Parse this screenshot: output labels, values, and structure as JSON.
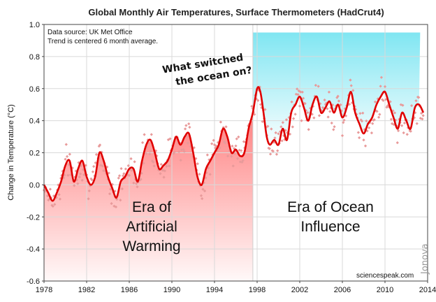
{
  "chart_data": {
    "type": "line",
    "title": "Global Monthly Air Temperatures, Surface Thermometers (HadCrut4)",
    "xlabel": "",
    "ylabel": "Change in Temperature  (°C)",
    "xlim": [
      1978,
      2014
    ],
    "ylim": [
      -0.6,
      1.0
    ],
    "x_ticks": [
      "1978",
      "1982",
      "1986",
      "1990",
      "1994",
      "1998",
      "2002",
      "2006",
      "2010",
      "2014"
    ],
    "y_ticks": [
      "-0.6",
      "-0.4",
      "-0.2",
      "0.0",
      "0.2",
      "0.4",
      "0.6",
      "0.8",
      "1.0"
    ],
    "grid": true,
    "notes": [
      "Data source: UK Met Office",
      "Trend is centered 6 month average."
    ],
    "annotation_lines": [
      "What switched",
      "the ocean on?"
    ],
    "era_left_lines": [
      "Era of",
      "Artificial",
      "Warming"
    ],
    "era_right_lines": [
      "Era of Ocean",
      "Influence"
    ],
    "era_boundary": 1997.6,
    "era_left_color": "#ff8080",
    "era_right_color": "#80e6f2",
    "credit": "sciencespeak.com",
    "signature": "Jonova",
    "line_color": "#e00000",
    "point_color": "#e89a9a",
    "series": [
      {
        "kind": "trend",
        "x": [
          1978.0,
          1978.4,
          1978.8,
          1979.2,
          1979.6,
          1980.0,
          1980.4,
          1980.8,
          1981.2,
          1981.6,
          1982.0,
          1982.4,
          1982.8,
          1983.2,
          1983.6,
          1984.0,
          1984.4,
          1984.8,
          1985.2,
          1985.6,
          1986.0,
          1986.4,
          1986.8,
          1987.2,
          1987.6,
          1988.0,
          1988.4,
          1988.8,
          1989.2,
          1989.6,
          1990.0,
          1990.4,
          1990.8,
          1991.2,
          1991.6,
          1992.0,
          1992.4,
          1992.8,
          1993.2,
          1993.6,
          1994.0,
          1994.4,
          1994.8,
          1995.2,
          1995.6,
          1996.0,
          1996.4,
          1996.8,
          1997.2,
          1997.6,
          1998.0,
          1998.3,
          1998.6,
          1998.9,
          1999.2,
          1999.6,
          2000.0,
          2000.4,
          2000.8,
          2001.2,
          2001.6,
          2002.0,
          2002.4,
          2002.8,
          2003.2,
          2003.6,
          2004.0,
          2004.4,
          2004.8,
          2005.2,
          2005.6,
          2006.0,
          2006.4,
          2006.8,
          2007.2,
          2007.6,
          2008.0,
          2008.4,
          2008.8,
          2009.2,
          2009.6,
          2010.0,
          2010.4,
          2010.8,
          2011.2,
          2011.6,
          2012.0,
          2012.4,
          2012.8,
          2013.2,
          2013.6
        ],
        "values": [
          0.0,
          -0.05,
          -0.1,
          -0.05,
          0.02,
          0.12,
          0.15,
          0.02,
          0.1,
          0.15,
          0.05,
          0.0,
          0.05,
          0.2,
          0.15,
          0.05,
          -0.02,
          -0.08,
          0.02,
          0.05,
          0.1,
          0.1,
          0.02,
          0.15,
          0.25,
          0.28,
          0.2,
          0.1,
          0.12,
          0.15,
          0.22,
          0.3,
          0.25,
          0.3,
          0.32,
          0.2,
          0.05,
          0.0,
          0.1,
          0.15,
          0.2,
          0.25,
          0.35,
          0.3,
          0.2,
          0.22,
          0.18,
          0.2,
          0.35,
          0.45,
          0.6,
          0.58,
          0.45,
          0.3,
          0.25,
          0.28,
          0.25,
          0.35,
          0.28,
          0.45,
          0.5,
          0.55,
          0.48,
          0.4,
          0.5,
          0.55,
          0.45,
          0.48,
          0.52,
          0.45,
          0.5,
          0.42,
          0.48,
          0.58,
          0.45,
          0.38,
          0.32,
          0.38,
          0.42,
          0.5,
          0.55,
          0.58,
          0.5,
          0.42,
          0.35,
          0.45,
          0.4,
          0.35,
          0.48,
          0.5,
          0.45
        ]
      }
    ]
  }
}
